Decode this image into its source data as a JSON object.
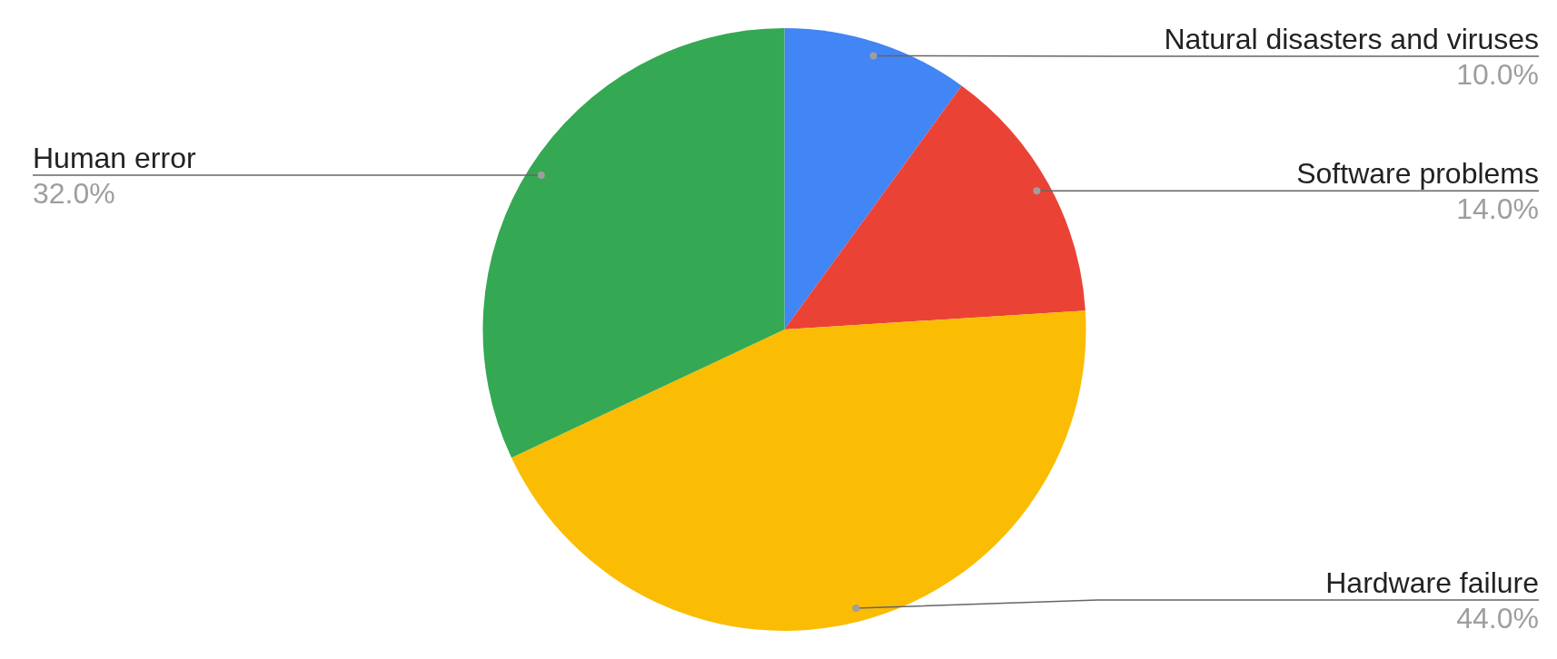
{
  "chart_data": {
    "type": "pie",
    "categories": [
      "Natural disasters and viruses",
      "Software problems",
      "Hardware failure",
      "Human error"
    ],
    "values": [
      10,
      14,
      44,
      32
    ],
    "colors": [
      "#4285f4",
      "#ea4335",
      "#fbbc04",
      "#34a853"
    ],
    "value_labels": [
      "10.0%",
      "14.0%",
      "44.0%",
      "32.0%"
    ]
  }
}
